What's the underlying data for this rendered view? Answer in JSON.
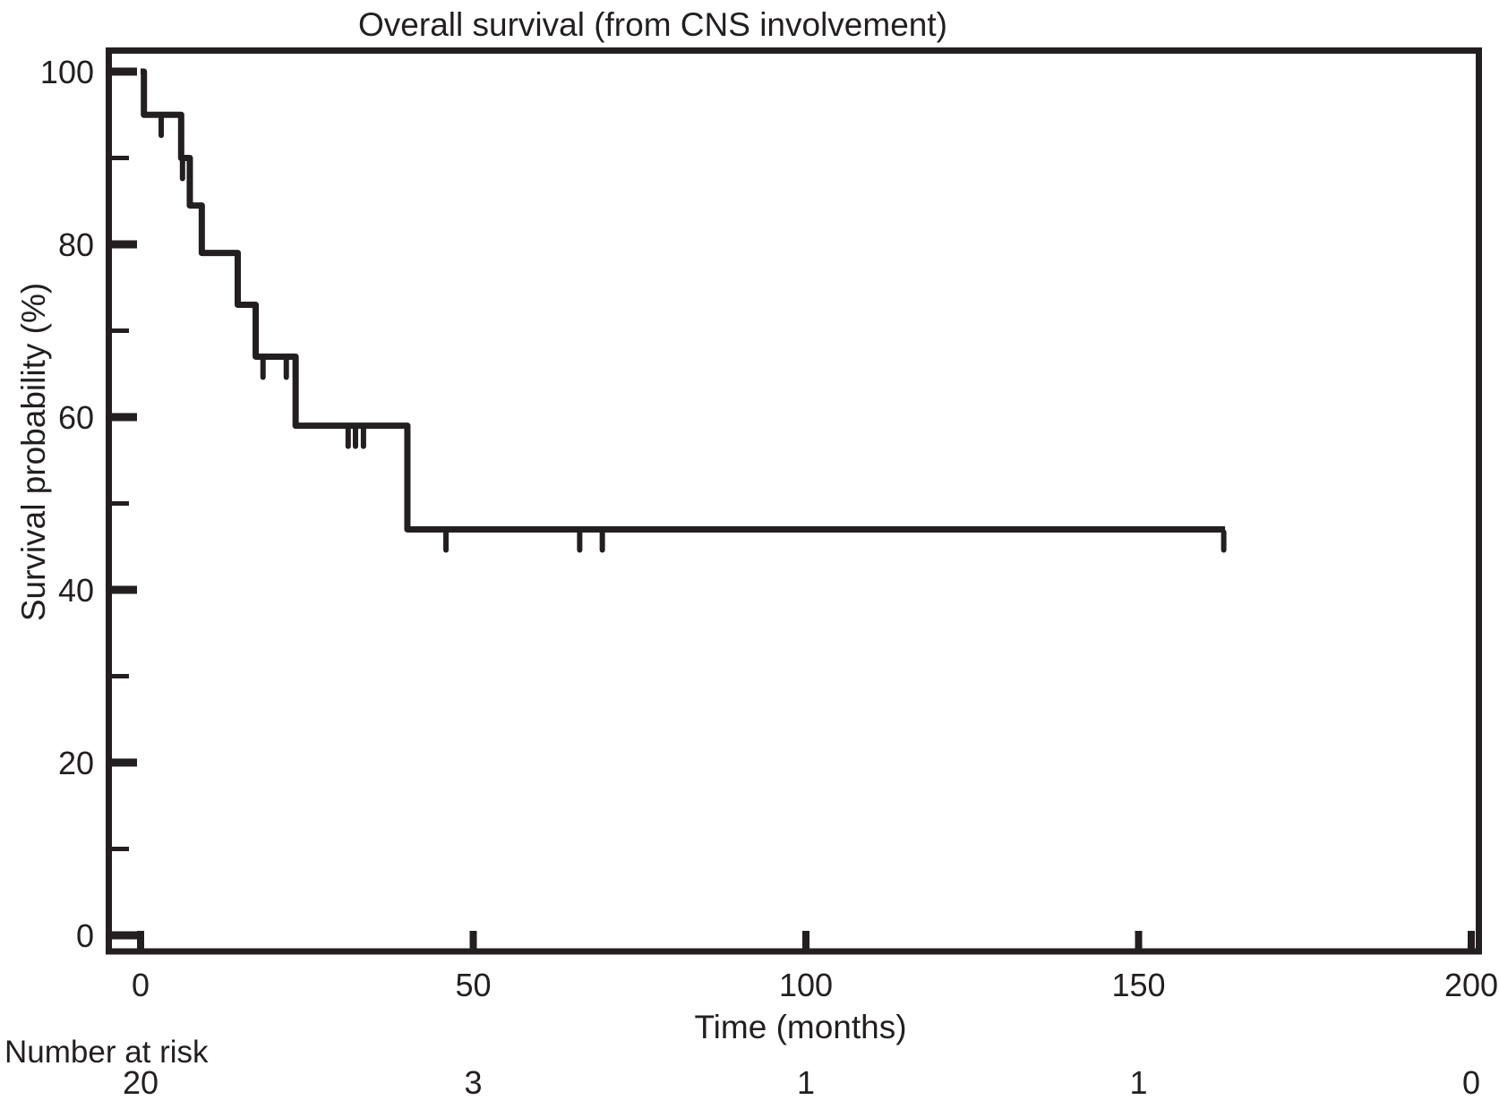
{
  "title": "Overall survival (from CNS involvement)",
  "axes": {
    "x": {
      "label": "Time (months)",
      "tick_values": [
        0,
        50,
        100,
        150,
        200
      ],
      "tick_labels": [
        "0",
        "50",
        "100",
        "150",
        "200"
      ],
      "range": [
        0,
        200
      ]
    },
    "y": {
      "label": "Survival probability (%)",
      "tick_values": [
        0,
        20,
        40,
        60,
        80,
        100
      ],
      "tick_labels": [
        "0",
        "20",
        "40",
        "60",
        "80",
        "100"
      ],
      "minor_tick_values": [
        10,
        30,
        50,
        70,
        90
      ],
      "range": [
        0,
        100
      ]
    }
  },
  "number_at_risk": {
    "heading": "Number at risk",
    "times": [
      0,
      50,
      100,
      150,
      200
    ],
    "values": [
      "20",
      "3",
      "1",
      "1",
      "0"
    ]
  },
  "colors": {
    "ink": "#231f20",
    "background": "#ffffff"
  },
  "chart_data": {
    "type": "line",
    "variant": "kaplan_meier_step_curve",
    "title": "Overall survival (from CNS involvement)",
    "xlabel": "Time (months)",
    "ylabel": "Survival probability (%)",
    "xlim": [
      0,
      200
    ],
    "ylim": [
      0,
      100
    ],
    "grid": false,
    "legend": "none",
    "series": [
      {
        "name": "Overall survival",
        "color": "#231f20",
        "start": [
          0,
          100
        ],
        "drops": [
          [
            0.5,
            95
          ],
          [
            6.1,
            90
          ],
          [
            7.4,
            84.5
          ],
          [
            9.2,
            79
          ],
          [
            14.6,
            73
          ],
          [
            17.3,
            67
          ],
          [
            23.3,
            59
          ],
          [
            40.1,
            47
          ]
        ],
        "end_time": 163,
        "final_value": 47,
        "censor_marks": [
          [
            3.1,
            95
          ],
          [
            6.3,
            90
          ],
          [
            18.4,
            67
          ],
          [
            21.9,
            67
          ],
          [
            31.2,
            59
          ],
          [
            32.3,
            59
          ],
          [
            33.5,
            59
          ],
          [
            45.9,
            47
          ],
          [
            66.0,
            47
          ],
          [
            69.4,
            47
          ],
          [
            162.8,
            47
          ]
        ]
      }
    ],
    "number_at_risk": {
      "label": "Number at risk",
      "times": [
        0,
        50,
        100,
        150,
        200
      ],
      "counts": [
        20,
        3,
        1,
        1,
        0
      ]
    }
  }
}
